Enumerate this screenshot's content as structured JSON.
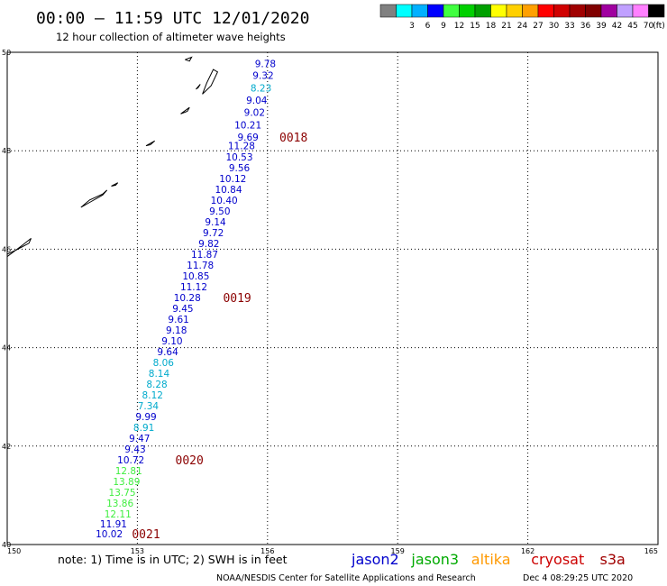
{
  "header": {
    "title": "00:00 – 11:59 UTC 12/01/2020",
    "subtitle": "12 hour collection of altimeter wave heights"
  },
  "color_scale": {
    "unit": "(ft)",
    "bins": [
      {
        "label": "",
        "color": "#808080"
      },
      {
        "label": "3",
        "color": "#00ffff"
      },
      {
        "label": "6",
        "color": "#00b0ff"
      },
      {
        "label": "9",
        "color": "#0000ff"
      },
      {
        "label": "12",
        "color": "#40ff40"
      },
      {
        "label": "15",
        "color": "#00d000"
      },
      {
        "label": "18",
        "color": "#00a000"
      },
      {
        "label": "21",
        "color": "#ffff00"
      },
      {
        "label": "24",
        "color": "#ffd000"
      },
      {
        "label": "27",
        "color": "#ffa000"
      },
      {
        "label": "30",
        "color": "#ff0000"
      },
      {
        "label": "33",
        "color": "#d00000"
      },
      {
        "label": "36",
        "color": "#a00000"
      },
      {
        "label": "39",
        "color": "#800000"
      },
      {
        "label": "42",
        "color": "#a000a0"
      },
      {
        "label": "45",
        "color": "#c0a0ff"
      },
      {
        "label": "70",
        "color": "#ff80ff"
      },
      {
        "label": "",
        "color": "#000000"
      }
    ]
  },
  "map": {
    "lon_ticks": [
      "150",
      "153",
      "156",
      "159",
      "162",
      "165"
    ],
    "lat_ticks": [
      "40",
      "42",
      "44",
      "46",
      "48",
      "50"
    ],
    "lon_range": [
      150,
      165
    ],
    "lat_range": [
      40,
      50
    ]
  },
  "observations": [
    {
      "value": "9.78",
      "lon": 155.95,
      "lat": 49.77,
      "color": "#0000cc"
    },
    {
      "value": "9.32",
      "lon": 155.9,
      "lat": 49.53,
      "color": "#0000cc"
    },
    {
      "value": "8.23",
      "lon": 155.85,
      "lat": 49.28,
      "color": "#00aacc"
    },
    {
      "value": "9.04",
      "lon": 155.75,
      "lat": 49.03,
      "color": "#0000cc"
    },
    {
      "value": "9.02",
      "lon": 155.7,
      "lat": 48.78,
      "color": "#0000cc"
    },
    {
      "value": "10.21",
      "lon": 155.55,
      "lat": 48.53,
      "color": "#0000cc"
    },
    {
      "value": "9.69",
      "lon": 155.55,
      "lat": 48.28,
      "color": "#0000cc"
    },
    {
      "value": "11.28",
      "lon": 155.4,
      "lat": 48.1,
      "color": "#0000cc"
    },
    {
      "value": "10.53",
      "lon": 155.35,
      "lat": 47.88,
      "color": "#0000cc"
    },
    {
      "value": "9.56",
      "lon": 155.35,
      "lat": 47.66,
      "color": "#0000cc"
    },
    {
      "value": "10.12",
      "lon": 155.2,
      "lat": 47.44,
      "color": "#0000cc"
    },
    {
      "value": "10.84",
      "lon": 155.1,
      "lat": 47.22,
      "color": "#0000cc"
    },
    {
      "value": "10.40",
      "lon": 155.0,
      "lat": 47.0,
      "color": "#0000cc"
    },
    {
      "value": "9.50",
      "lon": 154.9,
      "lat": 46.78,
      "color": "#0000cc"
    },
    {
      "value": "9.14",
      "lon": 154.8,
      "lat": 46.56,
      "color": "#0000cc"
    },
    {
      "value": "9.72",
      "lon": 154.75,
      "lat": 46.34,
      "color": "#0000cc"
    },
    {
      "value": "9.82",
      "lon": 154.65,
      "lat": 46.12,
      "color": "#0000cc"
    },
    {
      "value": "11.87",
      "lon": 154.55,
      "lat": 45.9,
      "color": "#0000cc"
    },
    {
      "value": "11.78",
      "lon": 154.45,
      "lat": 45.68,
      "color": "#0000cc"
    },
    {
      "value": "10.85",
      "lon": 154.35,
      "lat": 45.46,
      "color": "#0000cc"
    },
    {
      "value": "11.12",
      "lon": 154.3,
      "lat": 45.24,
      "color": "#0000cc"
    },
    {
      "value": "10.28",
      "lon": 154.15,
      "lat": 45.02,
      "color": "#0000cc"
    },
    {
      "value": "9.45",
      "lon": 154.05,
      "lat": 44.8,
      "color": "#0000cc"
    },
    {
      "value": "9.61",
      "lon": 153.95,
      "lat": 44.58,
      "color": "#0000cc"
    },
    {
      "value": "9.18",
      "lon": 153.9,
      "lat": 44.36,
      "color": "#0000cc"
    },
    {
      "value": "9.10",
      "lon": 153.8,
      "lat": 44.14,
      "color": "#0000cc"
    },
    {
      "value": "9.64",
      "lon": 153.7,
      "lat": 43.92,
      "color": "#0000cc"
    },
    {
      "value": "8.06",
      "lon": 153.6,
      "lat": 43.7,
      "color": "#00aacc"
    },
    {
      "value": "8.14",
      "lon": 153.5,
      "lat": 43.48,
      "color": "#00aacc"
    },
    {
      "value": "8.28",
      "lon": 153.45,
      "lat": 43.26,
      "color": "#00aacc"
    },
    {
      "value": "8.12",
      "lon": 153.35,
      "lat": 43.04,
      "color": "#00aacc"
    },
    {
      "value": "7.34",
      "lon": 153.25,
      "lat": 42.82,
      "color": "#00aacc"
    },
    {
      "value": "9.99",
      "lon": 153.2,
      "lat": 42.6,
      "color": "#0000cc"
    },
    {
      "value": "8.91",
      "lon": 153.15,
      "lat": 42.38,
      "color": "#00aacc"
    },
    {
      "value": "9.47",
      "lon": 153.05,
      "lat": 42.16,
      "color": "#0000cc"
    },
    {
      "value": "9.43",
      "lon": 152.95,
      "lat": 41.94,
      "color": "#0000cc"
    },
    {
      "value": "10.72",
      "lon": 152.85,
      "lat": 41.72,
      "color": "#0000cc"
    },
    {
      "value": "12.81",
      "lon": 152.8,
      "lat": 41.5,
      "color": "#40ee40"
    },
    {
      "value": "13.89",
      "lon": 152.75,
      "lat": 41.28,
      "color": "#40ee40"
    },
    {
      "value": "13.75",
      "lon": 152.65,
      "lat": 41.06,
      "color": "#40ee40"
    },
    {
      "value": "13.86",
      "lon": 152.6,
      "lat": 40.84,
      "color": "#40ee40"
    },
    {
      "value": "12.11",
      "lon": 152.55,
      "lat": 40.62,
      "color": "#40ee40"
    },
    {
      "value": "11.91",
      "lon": 152.45,
      "lat": 40.42,
      "color": "#0000cc"
    },
    {
      "value": "10.02",
      "lon": 152.35,
      "lat": 40.22,
      "color": "#0000cc"
    }
  ],
  "time_markers": [
    {
      "label": "0018",
      "lon": 156.6,
      "lat": 48.28
    },
    {
      "label": "0019",
      "lon": 155.3,
      "lat": 45.02
    },
    {
      "label": "0020",
      "lon": 154.2,
      "lat": 41.72
    },
    {
      "label": "0021",
      "lon": 153.2,
      "lat": 40.22
    }
  ],
  "coast": [
    [
      [
        150.0,
        45.85
      ],
      [
        150.35,
        46.08
      ],
      [
        150.55,
        46.22
      ],
      [
        150.5,
        46.12
      ],
      [
        150.2,
        45.98
      ],
      [
        150.0,
        45.9
      ]
    ],
    [
      [
        151.7,
        46.85
      ],
      [
        151.9,
        46.95
      ],
      [
        152.2,
        47.1
      ],
      [
        152.3,
        47.2
      ],
      [
        152.2,
        47.12
      ],
      [
        151.9,
        47.0
      ],
      [
        151.7,
        46.85
      ]
    ],
    [
      [
        152.4,
        47.28
      ],
      [
        152.55,
        47.35
      ],
      [
        152.5,
        47.3
      ],
      [
        152.4,
        47.28
      ]
    ],
    [
      [
        153.2,
        48.1
      ],
      [
        153.4,
        48.2
      ],
      [
        153.3,
        48.12
      ],
      [
        153.2,
        48.1
      ]
    ],
    [
      [
        154.0,
        48.75
      ],
      [
        154.2,
        48.88
      ],
      [
        154.15,
        48.8
      ],
      [
        154.0,
        48.75
      ]
    ],
    [
      [
        154.5,
        49.15
      ],
      [
        154.7,
        49.32
      ],
      [
        154.85,
        49.6
      ],
      [
        154.75,
        49.65
      ],
      [
        154.6,
        49.38
      ],
      [
        154.5,
        49.15
      ]
    ],
    [
      [
        154.35,
        49.25
      ],
      [
        154.45,
        49.35
      ],
      [
        154.4,
        49.28
      ],
      [
        154.35,
        49.25
      ]
    ],
    [
      [
        154.1,
        49.85
      ],
      [
        154.25,
        49.9
      ],
      [
        154.2,
        49.82
      ],
      [
        154.1,
        49.85
      ]
    ]
  ],
  "footer": {
    "note": "note: 1) Time is in UTC; 2) SWH is in feet",
    "credit": "NOAA/NESDIS Center for Satellite Applications and Research",
    "timestamp": "Dec 4 08:29:25 UTC 2020"
  },
  "legend": [
    {
      "label": "jason2",
      "color": "#0000cc"
    },
    {
      "label": "jason3",
      "color": "#00aa00"
    },
    {
      "label": "altika",
      "color": "#ff9900"
    },
    {
      "label": "cryosat",
      "color": "#cc0000"
    },
    {
      "label": "s3a",
      "color": "#a00000"
    }
  ]
}
